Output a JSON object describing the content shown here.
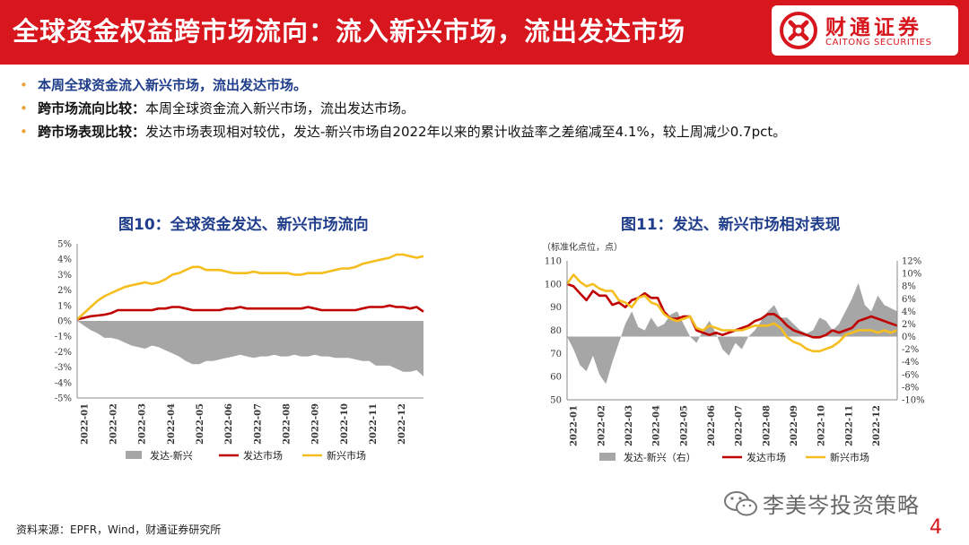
{
  "header": {
    "title": "全球资金权益跨市场流向：流入新兴市场，流出发达市场",
    "logo_cn": "财通证券",
    "logo_en": "CAITONG SECURITIES"
  },
  "bullets": [
    {
      "label": "本周全球资金流入新兴市场，流出发达市场。",
      "text": ""
    },
    {
      "label": "跨市场流向比较：",
      "text": "本周全球资金流入新兴市场，流出发达市场。"
    },
    {
      "label": "跨市场表现比较：",
      "text": "发达市场表现相对较优，发达-新兴市场自2022年以来的累计收益率之差缩减至4.1%，较上周减少0.7pct。"
    }
  ],
  "colors": {
    "brand_red": "#d7161e",
    "gray": "#a6a6a6",
    "dark_red": "#c00000",
    "yellow": "#f5be1e",
    "title_blue": "#1f3d8a"
  },
  "chart_data": [
    {
      "type": "area",
      "title": "图10：全球资金发达、新兴市场流向",
      "y_ticks": [
        "5%",
        "4%",
        "3%",
        "2%",
        "1%",
        "0%",
        "-1%",
        "-2%",
        "-3%",
        "-4%",
        "-5%"
      ],
      "ylim": [
        -5,
        5
      ],
      "x_ticks": [
        "2022-01",
        "2022-02",
        "2022-03",
        "2022-04",
        "2022-05",
        "2022-06",
        "2022-07",
        "2022-08",
        "2022-09",
        "2022-10",
        "2022-11",
        "2022-12"
      ],
      "grid": false,
      "legend_position": "bottom",
      "x_weeks": [
        0,
        1,
        2,
        3,
        4,
        5,
        6,
        7,
        8,
        9,
        10,
        11,
        12,
        13,
        14,
        15,
        16,
        17,
        18,
        19,
        20,
        21,
        22,
        23,
        24,
        25,
        26,
        27,
        28,
        29,
        30,
        31,
        32,
        33,
        34,
        35,
        36,
        37,
        38,
        39,
        40,
        41,
        42,
        43,
        44,
        45,
        46,
        47,
        48,
        49,
        50,
        51
      ],
      "series": [
        {
          "name": "发达-新兴",
          "kind": "area",
          "color": "#a6a6a6",
          "values": [
            0,
            -0.3,
            -0.6,
            -0.8,
            -1.1,
            -1.1,
            -1.2,
            -1.4,
            -1.6,
            -1.7,
            -1.8,
            -1.6,
            -1.7,
            -1.9,
            -2.1,
            -2.3,
            -2.6,
            -2.8,
            -2.8,
            -2.6,
            -2.6,
            -2.5,
            -2.4,
            -2.3,
            -2.2,
            -2.3,
            -2.4,
            -2.3,
            -2.3,
            -2.2,
            -2.3,
            -2.3,
            -2.2,
            -2.3,
            -2.3,
            -2.2,
            -2.3,
            -2.3,
            -2.4,
            -2.4,
            -2.4,
            -2.5,
            -2.6,
            -2.6,
            -2.9,
            -2.9,
            -2.9,
            -3.1,
            -3.3,
            -3.3,
            -3.2,
            -3.6
          ]
        },
        {
          "name": "发达市场",
          "kind": "line",
          "color": "#c00000",
          "values": [
            0.1,
            0.2,
            0.3,
            0.35,
            0.4,
            0.5,
            0.7,
            0.7,
            0.7,
            0.7,
            0.7,
            0.7,
            0.8,
            0.8,
            0.9,
            0.9,
            0.8,
            0.7,
            0.7,
            0.7,
            0.7,
            0.7,
            0.8,
            0.8,
            0.9,
            0.8,
            0.8,
            0.8,
            0.8,
            0.8,
            0.8,
            0.8,
            0.8,
            0.8,
            0.9,
            0.8,
            0.7,
            0.7,
            0.7,
            0.7,
            0.7,
            0.7,
            0.8,
            0.9,
            0.9,
            0.9,
            1.0,
            0.9,
            0.9,
            0.8,
            0.9,
            0.6
          ]
        },
        {
          "name": "新兴市场",
          "kind": "line",
          "color": "#f5be1e",
          "values": [
            0.1,
            0.5,
            0.9,
            1.3,
            1.6,
            1.8,
            2.0,
            2.2,
            2.3,
            2.4,
            2.5,
            2.4,
            2.5,
            2.7,
            3.0,
            3.1,
            3.3,
            3.5,
            3.5,
            3.3,
            3.3,
            3.3,
            3.2,
            3.1,
            3.1,
            3.1,
            3.2,
            3.1,
            3.1,
            3.1,
            3.1,
            3.1,
            3.0,
            3.0,
            3.1,
            3.1,
            3.1,
            3.2,
            3.3,
            3.4,
            3.4,
            3.5,
            3.7,
            3.8,
            3.9,
            4.0,
            4.1,
            4.3,
            4.3,
            4.2,
            4.1,
            4.2
          ]
        }
      ]
    },
    {
      "type": "area",
      "title": "图11：发达、新兴市场相对表现",
      "note": "（标准化点位，点）",
      "y_ticks_left": [
        "110",
        "100",
        "90",
        "80",
        "70",
        "60",
        "50"
      ],
      "ylim_left": [
        50,
        110
      ],
      "y_ticks_right": [
        "12%",
        "10%",
        "8%",
        "6%",
        "4%",
        "2%",
        "0%",
        "-2%",
        "-4%",
        "-6%",
        "-8%",
        "-10%"
      ],
      "ylim_right": [
        -10,
        12
      ],
      "x_ticks": [
        "2022-01",
        "2022-02",
        "2022-03",
        "2022-04",
        "2022-05",
        "2022-06",
        "2022-07",
        "2022-08",
        "2022-09",
        "2022-10",
        "2022-11",
        "2022-12"
      ],
      "grid": false,
      "legend_position": "bottom",
      "x_weeks": [
        0,
        1,
        2,
        3,
        4,
        5,
        6,
        7,
        8,
        9,
        10,
        11,
        12,
        13,
        14,
        15,
        16,
        17,
        18,
        19,
        20,
        21,
        22,
        23,
        24,
        25,
        26,
        27,
        28,
        29,
        30,
        31,
        32,
        33,
        34,
        35,
        36,
        37,
        38,
        39,
        40,
        41,
        42,
        43,
        44,
        45,
        46,
        47,
        48,
        49,
        50,
        51
      ],
      "series": [
        {
          "name": "发达-新兴（右）",
          "kind": "area",
          "axis": "right",
          "color": "#a6a6a6",
          "values": [
            0,
            -2,
            -4.5,
            -5.5,
            -3,
            -6,
            -7.5,
            -4,
            -1,
            2,
            4,
            1.5,
            1,
            3,
            1.5,
            2,
            3.5,
            4,
            2,
            0,
            -1,
            1,
            2.5,
            0.5,
            -2,
            -3,
            -1,
            -2,
            0,
            1,
            2.5,
            4,
            5,
            3,
            3,
            2,
            1,
            0.5,
            1,
            3,
            2.5,
            1,
            2,
            4,
            6,
            8.5,
            5,
            4,
            6.5,
            5,
            4.5,
            4
          ]
        },
        {
          "name": "发达市场",
          "kind": "line",
          "axis": "left",
          "color": "#c00000",
          "values": [
            100,
            99,
            96,
            93,
            97,
            95,
            95,
            91,
            92,
            90,
            93,
            94,
            96,
            94,
            94,
            88,
            85,
            85,
            86,
            86,
            80,
            79,
            78,
            79,
            78,
            79,
            80,
            81,
            82,
            84,
            85,
            87,
            87,
            85,
            82,
            80,
            79,
            78,
            77,
            77,
            78,
            80,
            79,
            80,
            81,
            84,
            85,
            86,
            85,
            84,
            83,
            82
          ]
        },
        {
          "name": "新兴市场",
          "kind": "line",
          "axis": "left",
          "color": "#f5be1e",
          "values": [
            100,
            104,
            101,
            99,
            100,
            98,
            97,
            97,
            93,
            92,
            90,
            94,
            95,
            92,
            91,
            87,
            85,
            84,
            85,
            86,
            81,
            80,
            82,
            81,
            80,
            80,
            80,
            80,
            81,
            82,
            82,
            82,
            83,
            81,
            77,
            75,
            74,
            72,
            71,
            71,
            72,
            73,
            75,
            78,
            79,
            80,
            80,
            80,
            79,
            80,
            79,
            80
          ]
        }
      ]
    }
  ],
  "footer": {
    "source": "资料来源：EPFR，Wind，财通证券研究所",
    "watermark": "李美岑投资策略",
    "page": "4"
  }
}
